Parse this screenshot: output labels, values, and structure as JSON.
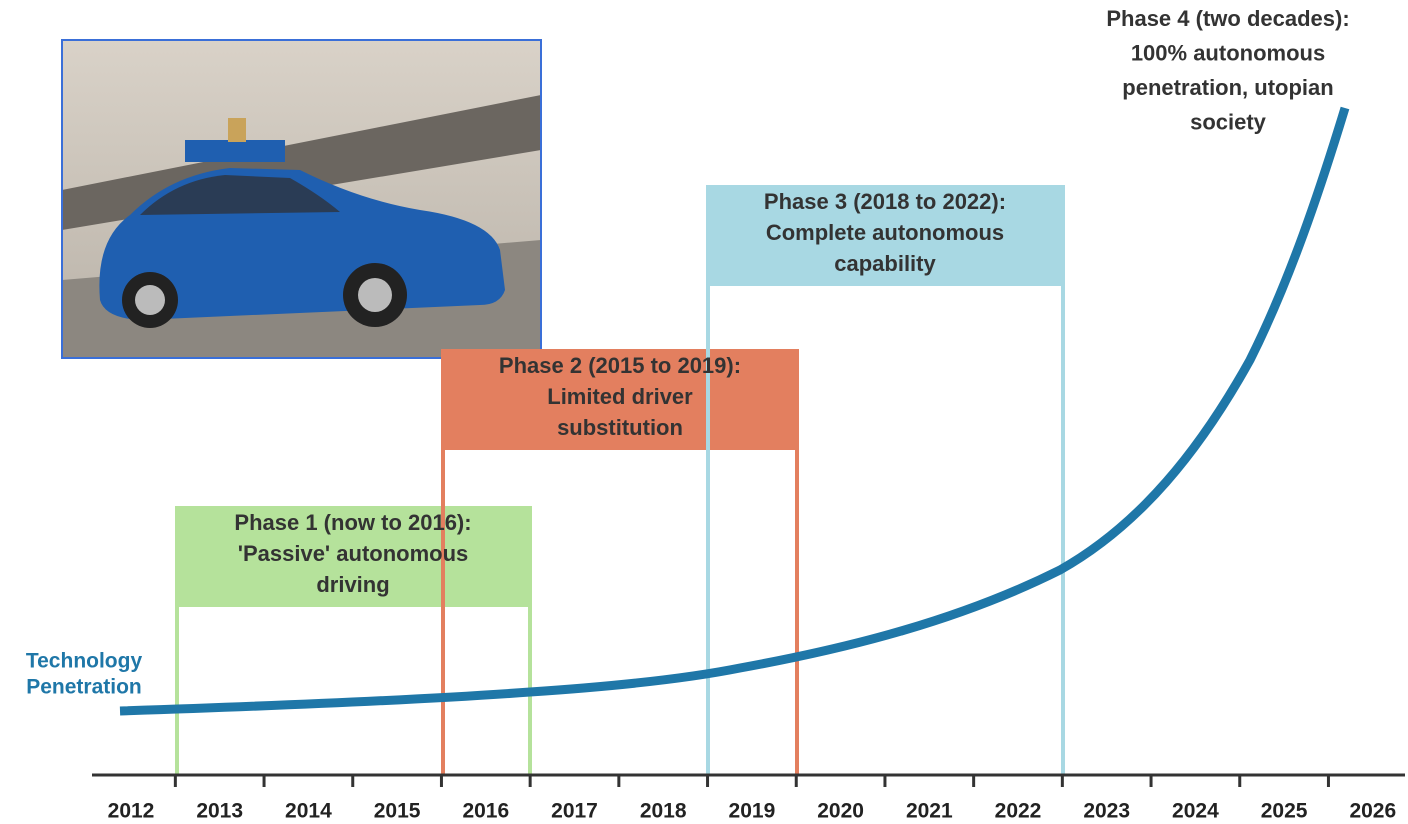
{
  "axis_labels": [
    "2012",
    "2013",
    "2014",
    "2015",
    "2016",
    "2017",
    "2018",
    "2019",
    "2020",
    "2021",
    "2022",
    "2023",
    "2024",
    "2025",
    "2026"
  ],
  "curve_label": [
    "Technology",
    "Penetration"
  ],
  "phases": [
    {
      "lines": [
        "Phase 1 (now to 2016):",
        "'Passive' autonomous",
        "driving"
      ]
    },
    {
      "lines": [
        "Phase 2 (2015 to 2019):",
        "Limited driver",
        "substitution"
      ]
    },
    {
      "lines": [
        "Phase 3 (2018 to 2022):",
        "Complete autonomous",
        "capability"
      ]
    },
    {
      "lines": [
        "Phase 4 (two decades):",
        "100% autonomous",
        "penetration, utopian",
        "society"
      ]
    }
  ]
}
